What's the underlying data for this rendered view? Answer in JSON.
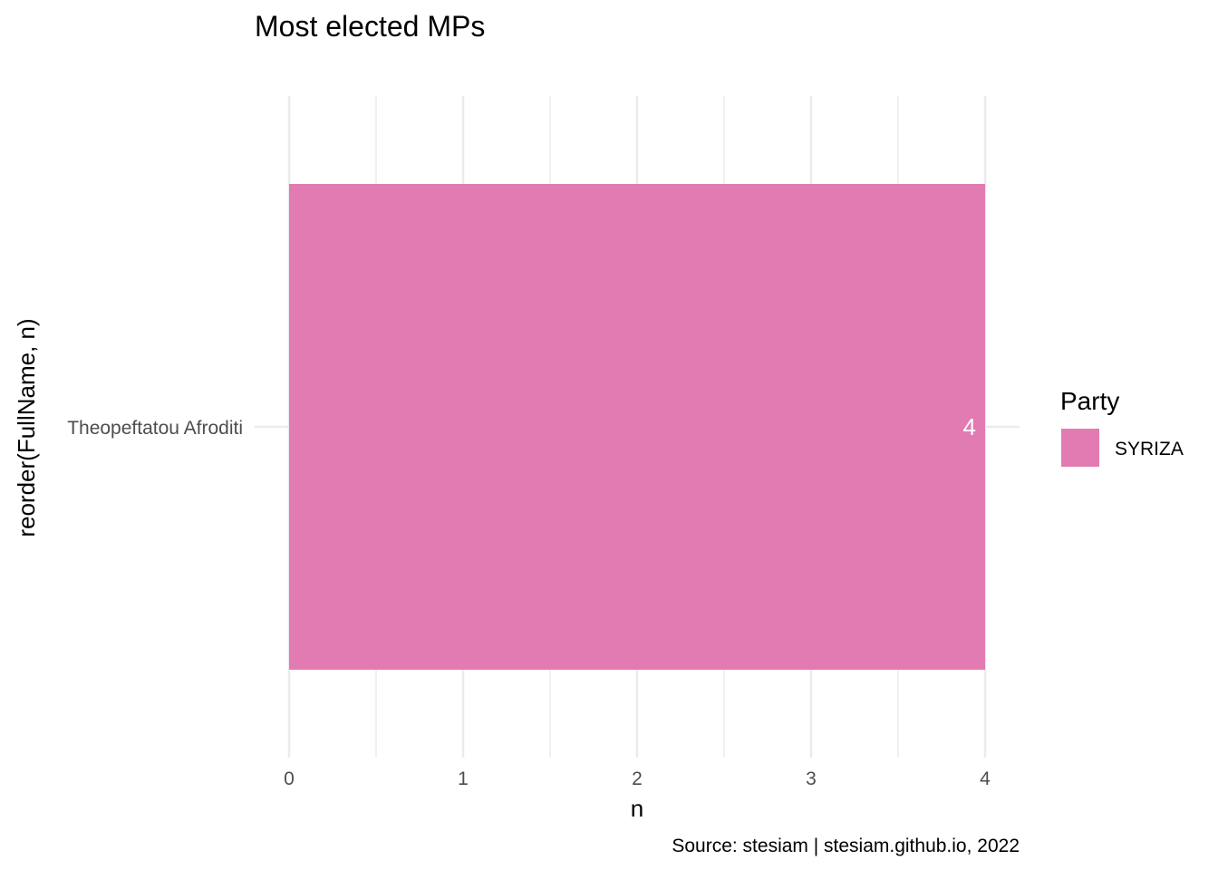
{
  "chart_data": {
    "type": "bar",
    "orientation": "horizontal",
    "title": "Most elected MPs",
    "xlabel": "n",
    "ylabel": "reorder(FullName, n)",
    "categories": [
      "Theopeftatou Afroditi"
    ],
    "series": [
      {
        "name": "SYRIZA",
        "values": [
          4
        ],
        "color": "#E27BB1"
      }
    ],
    "data_labels": [
      "4"
    ],
    "xlim": [
      0,
      4
    ],
    "x_ticks": [
      0,
      1,
      2,
      3,
      4
    ],
    "x_tick_labels": [
      "0",
      "1",
      "2",
      "3",
      "4"
    ],
    "grid": true,
    "legend": {
      "title": "Party",
      "placement": "right",
      "entries": [
        {
          "label": "SYRIZA",
          "color": "#E27BB1"
        }
      ]
    },
    "caption": "Source: stesiam | stesiam.github.io, 2022"
  }
}
